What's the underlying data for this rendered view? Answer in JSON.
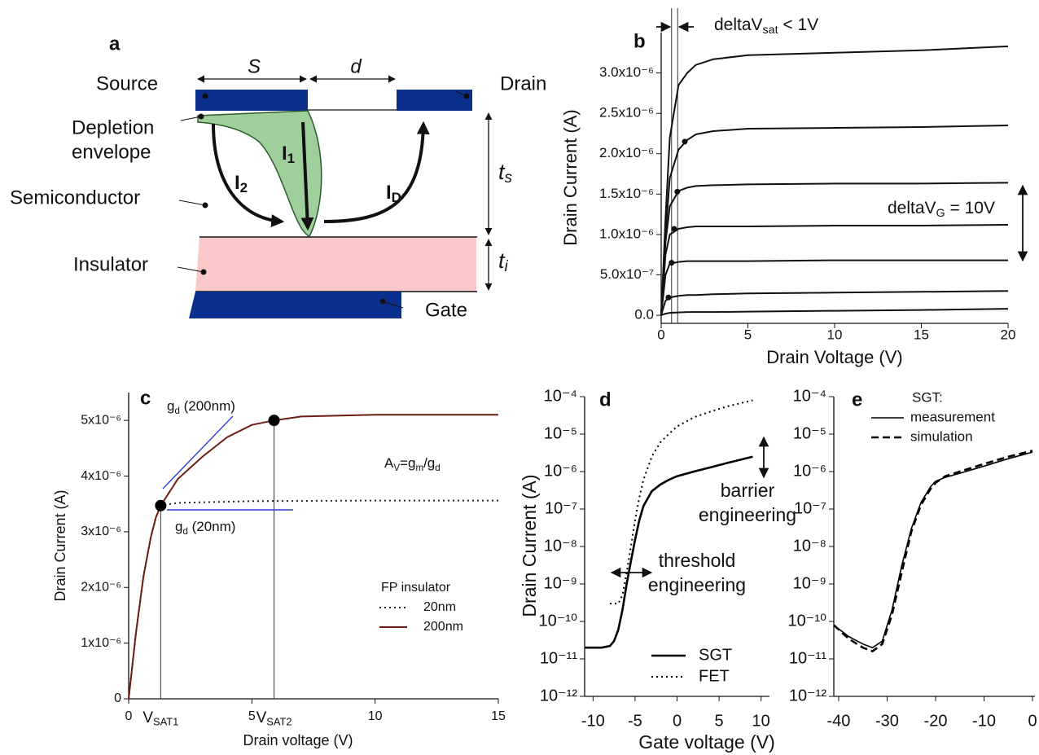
{
  "diagram": {
    "panel_label": "a",
    "labels": {
      "source": "Source",
      "drain": "Drain",
      "depletion": [
        "Depletion",
        "envelope"
      ],
      "semiconductor": "Semiconductor",
      "insulator": "Insulator",
      "gate": "Gate",
      "s": "S",
      "d": "d",
      "i1": [
        "I",
        "1"
      ],
      "i2": [
        "I",
        "2"
      ],
      "id": [
        "I",
        "D"
      ],
      "ts": [
        "t",
        "s"
      ],
      "ti": [
        "t",
        "i"
      ]
    }
  },
  "chart_data": [
    {
      "type": "line",
      "panel_label": "b",
      "xlabel": "Drain Voltage (V)",
      "ylabel": "Drain Current (A)",
      "xlim": [
        0,
        20
      ],
      "ylim": [
        -1e-07,
        3.5e-06
      ],
      "xticks": [
        0,
        5,
        10,
        15,
        20
      ],
      "yticks": [
        {
          "value": 0,
          "label": "0.0"
        },
        {
          "value": 5e-07,
          "label": "5.0x10⁻⁷"
        },
        {
          "value": 1e-06,
          "label": "1.0x10⁻⁶"
        },
        {
          "value": 1.5e-06,
          "label": "1.5x10⁻⁶"
        },
        {
          "value": 2e-06,
          "label": "2.0x10⁻⁶"
        },
        {
          "value": 2.5e-06,
          "label": "2.5x10⁻⁶"
        },
        {
          "value": 3e-06,
          "label": "3.0x10⁻⁶"
        }
      ],
      "x": [
        0,
        0.25,
        0.5,
        1,
        1.5,
        2,
        3,
        5,
        10,
        15,
        20
      ],
      "series": [
        {
          "color": "#111111",
          "values": [
            0,
            1.2e-06,
            2.2e-06,
            2.85e-06,
            3e-06,
            3.1e-06,
            3.17e-06,
            3.22e-06,
            3.25e-06,
            3.28e-06,
            3.33e-06
          ]
        },
        {
          "color": "#111111",
          "values": [
            0,
            1e-06,
            1.7e-06,
            2.05e-06,
            2.17e-06,
            2.24e-06,
            2.28e-06,
            2.31e-06,
            2.32e-06,
            2.33e-06,
            2.35e-06
          ]
        },
        {
          "color": "#111111",
          "values": [
            0,
            9e-07,
            1.35e-06,
            1.54e-06,
            1.58e-06,
            1.6e-06,
            1.61e-06,
            1.62e-06,
            1.63e-06,
            1.63e-06,
            1.64e-06
          ]
        },
        {
          "color": "#111111",
          "values": [
            0,
            7.5e-07,
            1e-06,
            1.07e-06,
            1.09e-06,
            1.1e-06,
            1.1e-06,
            1.1e-06,
            1.11e-06,
            1.11e-06,
            1.12e-06
          ]
        },
        {
          "color": "#111111",
          "values": [
            0,
            5e-07,
            6.4e-07,
            6.6e-07,
            6.7e-07,
            6.7e-07,
            6.7e-07,
            6.7e-07,
            6.8e-07,
            6.8e-07,
            6.8e-07
          ]
        },
        {
          "color": "#111111",
          "values": [
            0,
            1.8e-07,
            2.2e-07,
            2.4e-07,
            2.5e-07,
            2.5e-07,
            2.6e-07,
            2.7e-07,
            2.8e-07,
            2.9e-07,
            3e-07
          ]
        },
        {
          "color": "#111111",
          "values": [
            0,
            2e-08,
            3e-08,
            3.5e-08,
            4e-08,
            4e-08,
            4e-08,
            4.5e-08,
            5.5e-08,
            6.5e-08,
            8e-08
          ]
        }
      ],
      "markers": {
        "color": "#111111",
        "x": [
          1.36,
          0.93,
          0.75,
          0.6,
          0.42
        ],
        "values": [
          2.15e-06,
          1.53e-06,
          1.07e-06,
          6.5e-07,
          2.2e-07
        ]
      },
      "vlines": [
        0.6,
        0.95
      ],
      "annotations": [
        {
          "parts": [
            "deltaV",
            "sat",
            " < 1V"
          ]
        },
        {
          "parts": [
            "deltaV",
            "G",
            "  = 10V"
          ]
        }
      ]
    },
    {
      "type": "line",
      "panel_label": "c",
      "xlabel": "Drain voltage (V)",
      "ylabel": "Drain Current (A)",
      "xlim": [
        0,
        15
      ],
      "ylim": [
        0,
        5.5e-06
      ],
      "xticks": [
        0,
        5,
        10,
        15
      ],
      "yticks": [
        0,
        {
          "value": 1e-06,
          "label": "1x10⁻⁶"
        },
        {
          "value": 2e-06,
          "label": "2x10⁻⁶"
        },
        {
          "value": 3e-06,
          "label": "3x10⁻⁶"
        },
        {
          "value": 4e-06,
          "label": "4x10⁻⁶"
        },
        {
          "value": 5e-06,
          "label": "5x10⁻⁶"
        }
      ],
      "legend": {
        "title": "FP insulator"
      },
      "series": [
        {
          "name": "20nm",
          "color": "#222222",
          "dash": "dotted",
          "x": [
            0,
            0.3,
            0.6,
            0.9,
            1.1,
            1.3,
            2,
            5,
            10,
            15
          ],
          "values": [
            0,
            1.2e-06,
            2.2e-06,
            2.9e-06,
            3.25e-06,
            3.47e-06,
            3.52e-06,
            3.55e-06,
            3.56e-06,
            3.56e-06
          ]
        },
        {
          "name": "200nm",
          "color": "#6b1d12",
          "x": [
            0,
            0.3,
            0.6,
            0.9,
            1.1,
            1.3,
            2,
            3,
            4,
            5,
            5.9,
            7,
            10,
            15
          ],
          "values": [
            0,
            1.2e-06,
            2.2e-06,
            2.9e-06,
            3.25e-06,
            3.47e-06,
            3.95e-06,
            4.35e-06,
            4.7e-06,
            4.92e-06,
            5e-06,
            5.07e-06,
            5.1e-06,
            5.1e-06
          ]
        }
      ],
      "markers": {
        "color": "#000000",
        "x": [
          1.3,
          5.9
        ],
        "values": [
          3.47e-06,
          5e-06
        ],
        "labels": [
          [
            "V",
            "SAT1"
          ],
          [
            "V",
            "SAT2"
          ]
        ]
      },
      "annotations": [
        {
          "parts": [
            "g",
            "d",
            " (200nm)"
          ]
        },
        {
          "parts": [
            "A",
            "V",
            "=g",
            "m",
            "/g",
            "d"
          ]
        },
        {
          "parts": [
            "g",
            "d",
            " (20nm)"
          ]
        }
      ]
    },
    {
      "type": "line",
      "panel_label": "d",
      "yscale": "log",
      "xlabel": "Gate voltage (V)",
      "ylabel": "Drain Current (A)",
      "xlim": [
        -11,
        11
      ],
      "ylim": [
        1e-12,
        0.0001
      ],
      "xticks": [
        -10,
        -5,
        0,
        5,
        10
      ],
      "yticks": [
        {
          "value": 1e-12,
          "label": "10⁻¹²"
        },
        {
          "value": 1e-11,
          "label": "10⁻¹¹"
        },
        {
          "value": 1e-10,
          "label": "10⁻¹⁰"
        },
        {
          "value": 1e-09,
          "label": "10⁻⁹"
        },
        {
          "value": 1e-08,
          "label": "10⁻⁸"
        },
        {
          "value": 1e-07,
          "label": "10⁻⁷"
        },
        {
          "value": 1e-06,
          "label": "10⁻⁶"
        },
        {
          "value": 1e-05,
          "label": "10⁻⁵"
        },
        {
          "value": 0.0001,
          "label": "10⁻⁴"
        }
      ],
      "legend": {},
      "series": [
        {
          "name": "SGT",
          "color": "#000000",
          "width": 2.6,
          "x": [
            -11,
            -9,
            -8,
            -7.5,
            -7,
            -6.5,
            -6,
            -5.5,
            -5,
            -4.5,
            -4,
            -3,
            -2,
            -1,
            0,
            2,
            4,
            6,
            9
          ],
          "values": [
            2e-11,
            2e-11,
            2.2e-11,
            3e-11,
            6e-11,
            2e-10,
            1e-09,
            4e-09,
            1.5e-08,
            5e-08,
            1.2e-07,
            3e-07,
            4.5e-07,
            6e-07,
            7.5e-07,
            1e-06,
            1.3e-06,
            1.7e-06,
            2.5e-06
          ]
        },
        {
          "name": "FET",
          "color": "#000000",
          "dash": "dotted",
          "x": [
            -8,
            -7,
            -6.5,
            -6,
            -5.5,
            -5,
            -4.5,
            -4,
            -3,
            -2,
            -1,
            0,
            2,
            4,
            6,
            9
          ],
          "values": [
            3e-10,
            3e-10,
            5e-10,
            2e-09,
            1e-08,
            5e-08,
            2e-07,
            6e-07,
            2.5e-06,
            6e-06,
            1e-05,
            1.6e-05,
            2.8e-05,
            4e-05,
            5.5e-05,
            8e-05
          ]
        }
      ],
      "annotations": [
        {
          "lines": [
            "barrier",
            "engineering"
          ]
        },
        {
          "lines": [
            "threshold",
            "engineering"
          ]
        }
      ]
    },
    {
      "type": "line",
      "panel_label": "e",
      "yscale": "log",
      "xlim": [
        -41,
        0.5
      ],
      "ylim": [
        1e-12,
        0.0001
      ],
      "xticks": [
        -40,
        -30,
        -20,
        -10,
        0
      ],
      "yticks": [
        {
          "value": 1e-12,
          "label": "10⁻¹²"
        },
        {
          "value": 1e-11,
          "label": "10⁻¹¹"
        },
        {
          "value": 1e-10,
          "label": "10⁻¹⁰"
        },
        {
          "value": 1e-09,
          "label": "10⁻⁹"
        },
        {
          "value": 1e-08,
          "label": "10⁻⁸"
        },
        {
          "value": 1e-07,
          "label": "10⁻⁷"
        },
        {
          "value": 1e-06,
          "label": "10⁻⁶"
        },
        {
          "value": 1e-05,
          "label": "10⁻⁵"
        },
        {
          "value": 0.0001,
          "label": "10⁻⁴"
        }
      ],
      "legend": {
        "title": "SGT:"
      },
      "series": [
        {
          "name": "measurement",
          "color": "#000000",
          "width": 1.6,
          "x": [
            -41,
            -38,
            -35,
            -33,
            -31,
            -29,
            -27,
            -25,
            -23,
            -21,
            -20,
            -18,
            -15,
            -10,
            -5,
            0
          ],
          "values": [
            8e-11,
            4e-11,
            2.5e-11,
            2e-11,
            3e-11,
            2e-10,
            3e-09,
            3e-08,
            1.5e-07,
            4e-07,
            5.5e-07,
            7e-07,
            9e-07,
            1.4e-06,
            2.2e-06,
            3.3e-06
          ]
        },
        {
          "name": "simulation",
          "color": "#000000",
          "dash": "dashed",
          "width": 2.6,
          "x": [
            -41,
            -38,
            -35,
            -33,
            -31,
            -29,
            -27,
            -25,
            -23,
            -21,
            -20,
            -18,
            -15,
            -10,
            -5,
            0
          ],
          "values": [
            8e-11,
            3.5e-11,
            2e-11,
            1.6e-11,
            2.5e-11,
            1.5e-10,
            2e-09,
            2.5e-08,
            1.3e-07,
            3.5e-07,
            5e-07,
            7.5e-07,
            1e-06,
            1.6e-06,
            2.5e-06,
            3.6e-06
          ]
        }
      ]
    }
  ]
}
